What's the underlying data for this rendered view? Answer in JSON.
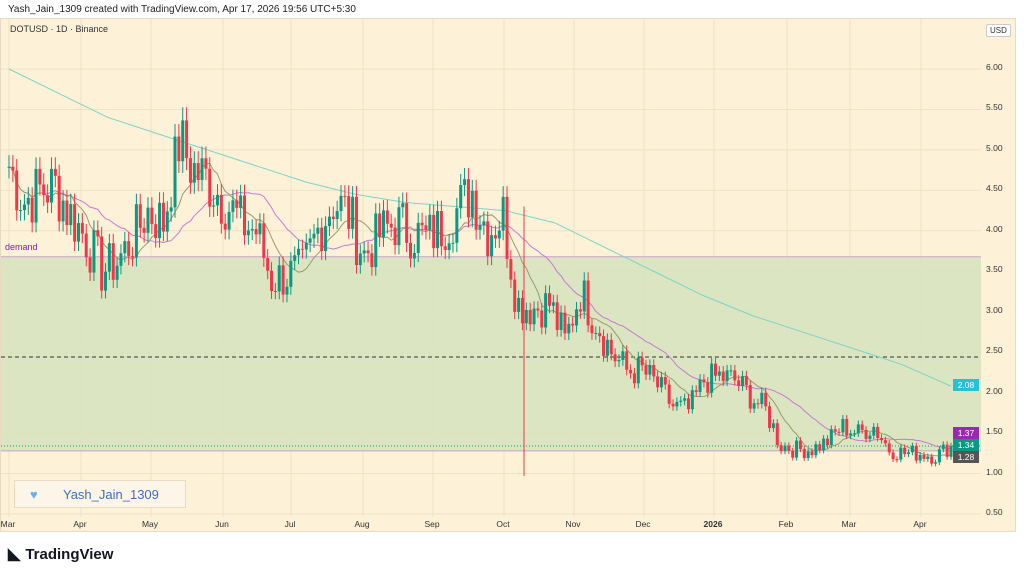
{
  "header": "Yash_Jain_1309 created with TradingView.com, Apr 17, 2026 19:56 UTC+5:30",
  "symbol": "DOTUSD · 1D · Binance",
  "currency": "USD",
  "zone_label": "demand",
  "watermark": "Yash_Jain_1309",
  "brand": "TradingView",
  "colors": {
    "up": "#089981",
    "down": "#f23645",
    "ma200": "#7fd3c8",
    "ma_purple": "#c77bd0",
    "ma_olive": "#9a9a6a",
    "zone": "#d5e3bd",
    "tag_ma200": "#22c3d8",
    "tag_purple": "#9c27b0",
    "tag_price": "#089981",
    "tag_low": "#555"
  },
  "chart_data": {
    "type": "candlestick",
    "y_ticks": [
      "6.00",
      "5.50",
      "5.00",
      "4.50",
      "4.00",
      "3.50",
      "3.00",
      "2.50",
      "2.00",
      "1.50",
      "1.00",
      "0.50"
    ],
    "x_ticks": [
      "Mar",
      "Apr",
      "May",
      "Jun",
      "Jul",
      "Aug",
      "Sep",
      "Oct",
      "Nov",
      "Dec",
      "2026",
      "Feb",
      "Mar",
      "Apr"
    ],
    "weekly_closes": [
      4.8,
      4.37,
      4.5,
      4.55,
      4.2,
      3.9,
      3.5,
      3.62,
      3.9,
      4.25,
      4.1,
      5.1,
      4.75,
      4.6,
      4.37,
      4.1,
      4.0,
      3.4,
      3.45,
      3.5,
      4.0,
      4.37,
      4.2,
      3.7,
      3.95,
      4.1,
      4.0,
      3.9,
      4.05,
      4.25,
      4.5,
      4.0,
      4.2,
      3.1,
      3.05,
      3.1,
      2.63,
      3.25,
      2.9,
      2.5,
      2.27,
      2.27,
      2.08,
      1.83,
      1.78,
      2.15,
      2.2,
      2.15,
      1.96,
      1.78,
      1.35,
      1.3,
      1.3,
      1.4,
      1.58,
      1.5,
      1.58,
      1.3,
      1.25,
      1.25,
      1.22,
      1.34
    ],
    "ma200_points": [
      6.0,
      5.7,
      5.4,
      5.2,
      5.0,
      4.8,
      4.6,
      4.45,
      4.35,
      4.3,
      4.25,
      4.1,
      3.8,
      3.5,
      3.2,
      2.95,
      2.75,
      2.55,
      2.35,
      2.08
    ],
    "demand_zone": [
      1.28,
      3.68
    ],
    "dashed_level": 2.44,
    "last_price": "1.34",
    "ma_purple_last": "1.37",
    "ma200_last": "2.08",
    "zone_low": "1.28"
  }
}
